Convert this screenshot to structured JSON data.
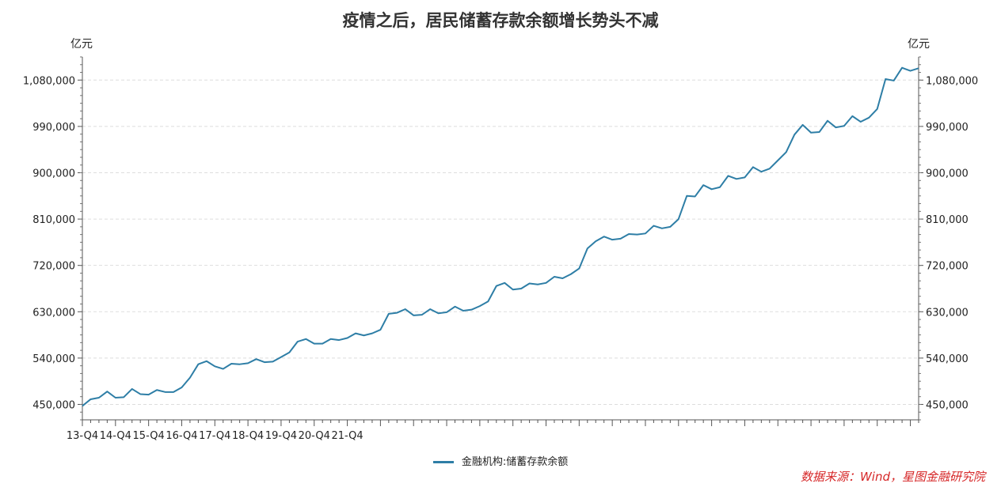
{
  "chart_data": {
    "type": "line",
    "title": "疫情之后，居民储蓄存款余额增长势头不减",
    "y_unit_left": "亿元",
    "y_unit_right": "亿元",
    "ylim": [
      420000,
      1125000
    ],
    "yticks": [
      450000,
      540000,
      630000,
      720000,
      810000,
      900000,
      990000,
      1080000
    ],
    "ytick_labels": [
      "450,000",
      "540,000",
      "630,000",
      "720,000",
      "810,000",
      "900,000",
      "990,000",
      "1,080,000"
    ],
    "xtick_labels": [
      "13-Q4",
      "14-Q4",
      "15-Q4",
      "16-Q4",
      "17-Q4",
      "18-Q4",
      "19-Q4",
      "20-Q4",
      "21-Q4"
    ],
    "grid": true,
    "legend_position": "bottom-center",
    "series": [
      {
        "name": "金融机构:储蓄存款余额",
        "color": "#2e7ea6",
        "values": [
          447000,
          460000,
          463000,
          475000,
          463000,
          464000,
          480000,
          470000,
          469000,
          478000,
          474000,
          474000,
          483000,
          502000,
          528000,
          534000,
          524000,
          519000,
          529000,
          528000,
          530000,
          538000,
          532000,
          533000,
          542000,
          551000,
          572000,
          577000,
          568000,
          568000,
          577000,
          575000,
          579000,
          588000,
          584000,
          588000,
          595000,
          626000,
          628000,
          635000,
          623000,
          624000,
          635000,
          627000,
          629000,
          640000,
          632000,
          634000,
          641000,
          650000,
          680000,
          686000,
          673000,
          675000,
          685000,
          683000,
          686000,
          698000,
          695000,
          703000,
          714000,
          753000,
          767000,
          776000,
          770000,
          772000,
          781000,
          780000,
          782000,
          797000,
          792000,
          795000,
          810000,
          855000,
          854000,
          876000,
          868000,
          872000,
          894000,
          888000,
          891000,
          911000,
          902000,
          908000,
          924000,
          940000,
          974000,
          993000,
          978000,
          979000,
          1001000,
          988000,
          991000,
          1010000,
          999000,
          1007000,
          1024000,
          1082000,
          1079000,
          1104000,
          1098000,
          1103000
        ]
      }
    ],
    "source": "数据来源：Wind，星图金融研究院"
  }
}
